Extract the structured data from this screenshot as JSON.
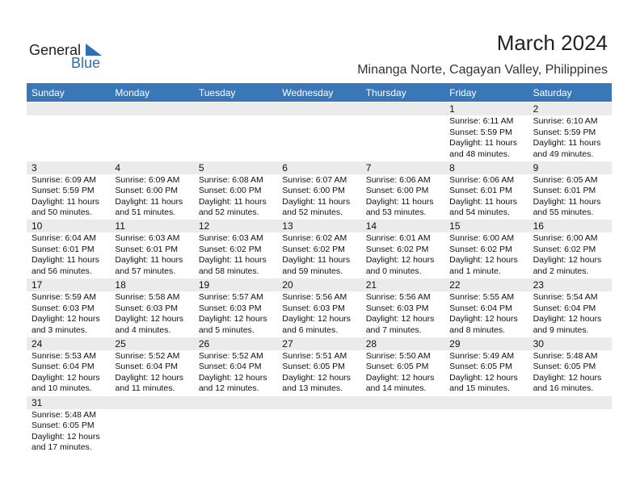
{
  "header": {
    "logo": {
      "word1": "General",
      "word2": "Blue"
    },
    "title": "March 2024",
    "subtitle": "Minanga Norte, Cagayan Valley, Philippines"
  },
  "weekdays": [
    "Sunday",
    "Monday",
    "Tuesday",
    "Wednesday",
    "Thursday",
    "Friday",
    "Saturday"
  ],
  "weeks": [
    [
      null,
      null,
      null,
      null,
      null,
      {
        "day": 1,
        "lines": [
          "Sunrise: 6:11 AM",
          "Sunset: 5:59 PM",
          "Daylight: 11 hours",
          "and 48 minutes."
        ]
      },
      {
        "day": 2,
        "lines": [
          "Sunrise: 6:10 AM",
          "Sunset: 5:59 PM",
          "Daylight: 11 hours",
          "and 49 minutes."
        ]
      }
    ],
    [
      {
        "day": 3,
        "lines": [
          "Sunrise: 6:09 AM",
          "Sunset: 5:59 PM",
          "Daylight: 11 hours",
          "and 50 minutes."
        ]
      },
      {
        "day": 4,
        "lines": [
          "Sunrise: 6:09 AM",
          "Sunset: 6:00 PM",
          "Daylight: 11 hours",
          "and 51 minutes."
        ]
      },
      {
        "day": 5,
        "lines": [
          "Sunrise: 6:08 AM",
          "Sunset: 6:00 PM",
          "Daylight: 11 hours",
          "and 52 minutes."
        ]
      },
      {
        "day": 6,
        "lines": [
          "Sunrise: 6:07 AM",
          "Sunset: 6:00 PM",
          "Daylight: 11 hours",
          "and 52 minutes."
        ]
      },
      {
        "day": 7,
        "lines": [
          "Sunrise: 6:06 AM",
          "Sunset: 6:00 PM",
          "Daylight: 11 hours",
          "and 53 minutes."
        ]
      },
      {
        "day": 8,
        "lines": [
          "Sunrise: 6:06 AM",
          "Sunset: 6:01 PM",
          "Daylight: 11 hours",
          "and 54 minutes."
        ]
      },
      {
        "day": 9,
        "lines": [
          "Sunrise: 6:05 AM",
          "Sunset: 6:01 PM",
          "Daylight: 11 hours",
          "and 55 minutes."
        ]
      }
    ],
    [
      {
        "day": 10,
        "lines": [
          "Sunrise: 6:04 AM",
          "Sunset: 6:01 PM",
          "Daylight: 11 hours",
          "and 56 minutes."
        ]
      },
      {
        "day": 11,
        "lines": [
          "Sunrise: 6:03 AM",
          "Sunset: 6:01 PM",
          "Daylight: 11 hours",
          "and 57 minutes."
        ]
      },
      {
        "day": 12,
        "lines": [
          "Sunrise: 6:03 AM",
          "Sunset: 6:02 PM",
          "Daylight: 11 hours",
          "and 58 minutes."
        ]
      },
      {
        "day": 13,
        "lines": [
          "Sunrise: 6:02 AM",
          "Sunset: 6:02 PM",
          "Daylight: 11 hours",
          "and 59 minutes."
        ]
      },
      {
        "day": 14,
        "lines": [
          "Sunrise: 6:01 AM",
          "Sunset: 6:02 PM",
          "Daylight: 12 hours",
          "and 0 minutes."
        ]
      },
      {
        "day": 15,
        "lines": [
          "Sunrise: 6:00 AM",
          "Sunset: 6:02 PM",
          "Daylight: 12 hours",
          "and 1 minute."
        ]
      },
      {
        "day": 16,
        "lines": [
          "Sunrise: 6:00 AM",
          "Sunset: 6:02 PM",
          "Daylight: 12 hours",
          "and 2 minutes."
        ]
      }
    ],
    [
      {
        "day": 17,
        "lines": [
          "Sunrise: 5:59 AM",
          "Sunset: 6:03 PM",
          "Daylight: 12 hours",
          "and 3 minutes."
        ]
      },
      {
        "day": 18,
        "lines": [
          "Sunrise: 5:58 AM",
          "Sunset: 6:03 PM",
          "Daylight: 12 hours",
          "and 4 minutes."
        ]
      },
      {
        "day": 19,
        "lines": [
          "Sunrise: 5:57 AM",
          "Sunset: 6:03 PM",
          "Daylight: 12 hours",
          "and 5 minutes."
        ]
      },
      {
        "day": 20,
        "lines": [
          "Sunrise: 5:56 AM",
          "Sunset: 6:03 PM",
          "Daylight: 12 hours",
          "and 6 minutes."
        ]
      },
      {
        "day": 21,
        "lines": [
          "Sunrise: 5:56 AM",
          "Sunset: 6:03 PM",
          "Daylight: 12 hours",
          "and 7 minutes."
        ]
      },
      {
        "day": 22,
        "lines": [
          "Sunrise: 5:55 AM",
          "Sunset: 6:04 PM",
          "Daylight: 12 hours",
          "and 8 minutes."
        ]
      },
      {
        "day": 23,
        "lines": [
          "Sunrise: 5:54 AM",
          "Sunset: 6:04 PM",
          "Daylight: 12 hours",
          "and 9 minutes."
        ]
      }
    ],
    [
      {
        "day": 24,
        "lines": [
          "Sunrise: 5:53 AM",
          "Sunset: 6:04 PM",
          "Daylight: 12 hours",
          "and 10 minutes."
        ]
      },
      {
        "day": 25,
        "lines": [
          "Sunrise: 5:52 AM",
          "Sunset: 6:04 PM",
          "Daylight: 12 hours",
          "and 11 minutes."
        ]
      },
      {
        "day": 26,
        "lines": [
          "Sunrise: 5:52 AM",
          "Sunset: 6:04 PM",
          "Daylight: 12 hours",
          "and 12 minutes."
        ]
      },
      {
        "day": 27,
        "lines": [
          "Sunrise: 5:51 AM",
          "Sunset: 6:05 PM",
          "Daylight: 12 hours",
          "and 13 minutes."
        ]
      },
      {
        "day": 28,
        "lines": [
          "Sunrise: 5:50 AM",
          "Sunset: 6:05 PM",
          "Daylight: 12 hours",
          "and 14 minutes."
        ]
      },
      {
        "day": 29,
        "lines": [
          "Sunrise: 5:49 AM",
          "Sunset: 6:05 PM",
          "Daylight: 12 hours",
          "and 15 minutes."
        ]
      },
      {
        "day": 30,
        "lines": [
          "Sunrise: 5:48 AM",
          "Sunset: 6:05 PM",
          "Daylight: 12 hours",
          "and 16 minutes."
        ]
      }
    ],
    [
      {
        "day": 31,
        "lines": [
          "Sunrise: 5:48 AM",
          "Sunset: 6:05 PM",
          "Daylight: 12 hours",
          "and 17 minutes."
        ]
      },
      null,
      null,
      null,
      null,
      null,
      null
    ]
  ]
}
